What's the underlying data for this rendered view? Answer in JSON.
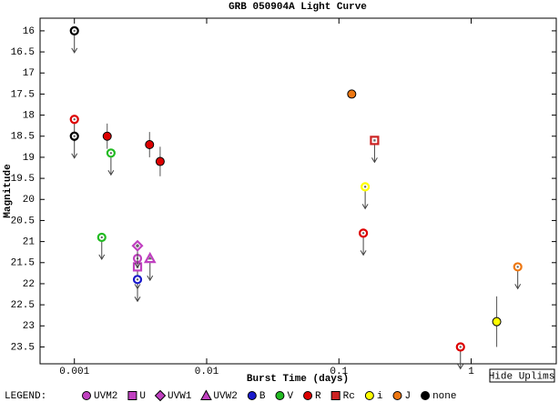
{
  "chart_data": {
    "type": "scatter",
    "title": "GRB 050904A Light Curve",
    "x_label": "Burst Time (days)",
    "y_label": "Magnitude",
    "x_scale": "log",
    "y_inverted": true,
    "xlim": [
      0.00055,
      4.4
    ],
    "xticks": [
      0.001,
      0.01,
      0.1,
      1
    ],
    "ylim": [
      15.7,
      23.9
    ],
    "yticks": [
      16,
      16.5,
      17,
      17.5,
      18,
      18.5,
      19,
      19.5,
      20,
      20.5,
      21,
      21.5,
      22,
      22.5,
      23,
      23.5
    ],
    "legend_title": "LEGEND:",
    "button": "Hide Uplims",
    "series": [
      {
        "name": "UVM2",
        "color": "#c040c0",
        "marker": "circle",
        "x": [
          0.003
        ],
        "values": [
          21.4
        ],
        "errors": [
          null
        ],
        "upper_limits": [
          true
        ]
      },
      {
        "name": "U",
        "color": "#c040c0",
        "marker": "square",
        "x": [
          0.003
        ],
        "values": [
          21.6
        ],
        "errors": [
          null
        ],
        "upper_limits": [
          true
        ]
      },
      {
        "name": "UVW1",
        "color": "#c040c0",
        "marker": "diamond",
        "x": [
          0.003
        ],
        "values": [
          21.1
        ],
        "errors": [
          null
        ],
        "upper_limits": [
          true
        ]
      },
      {
        "name": "UVW2",
        "color": "#c040c0",
        "marker": "triangle",
        "x": [
          0.00373
        ],
        "values": [
          21.4
        ],
        "errors": [
          null
        ],
        "upper_limits": [
          true
        ]
      },
      {
        "name": "B",
        "color": "#1a1acc",
        "marker": "circle",
        "x": [
          0.003
        ],
        "values": [
          21.9
        ],
        "errors": [
          null
        ],
        "upper_limits": [
          true
        ]
      },
      {
        "name": "V",
        "color": "#22bb22",
        "marker": "circle",
        "x": [
          0.00189,
          0.00161
        ],
        "values": [
          18.9,
          20.9
        ],
        "errors": [
          null,
          null
        ],
        "upper_limits": [
          true,
          true
        ]
      },
      {
        "name": "R",
        "color": "#dd0000",
        "marker": "circle",
        "x": [
          0.001,
          0.00177,
          0.0037,
          0.00445,
          0.153,
          0.83
        ],
        "values": [
          18.1,
          18.5,
          18.7,
          19.1,
          20.8,
          23.5
        ],
        "errors": [
          null,
          0.3,
          0.3,
          0.35,
          null,
          null
        ],
        "upper_limits": [
          true,
          false,
          false,
          false,
          true,
          true
        ]
      },
      {
        "name": "Rc",
        "color": "#cc2222",
        "marker": "square",
        "x": [
          0.186
        ],
        "values": [
          18.6
        ],
        "errors": [
          null
        ],
        "upper_limits": [
          true
        ]
      },
      {
        "name": "i",
        "color": "#ffff00",
        "marker": "circle",
        "x": [
          0.158,
          1.56
        ],
        "values": [
          19.7,
          22.9
        ],
        "errors": [
          null,
          0.6
        ],
        "upper_limits": [
          true,
          false
        ]
      },
      {
        "name": "J",
        "color": "#ee7711",
        "marker": "circle",
        "x": [
          0.125,
          2.25
        ],
        "values": [
          17.5,
          21.6
        ],
        "errors": [
          0.05,
          null
        ],
        "upper_limits": [
          false,
          true
        ]
      },
      {
        "name": "none",
        "color": "#000000",
        "marker": "circle",
        "x": [
          0.001,
          0.001
        ],
        "values": [
          16,
          18.5
        ],
        "errors": [
          null,
          null
        ],
        "upper_limits": [
          true,
          true
        ]
      }
    ]
  }
}
